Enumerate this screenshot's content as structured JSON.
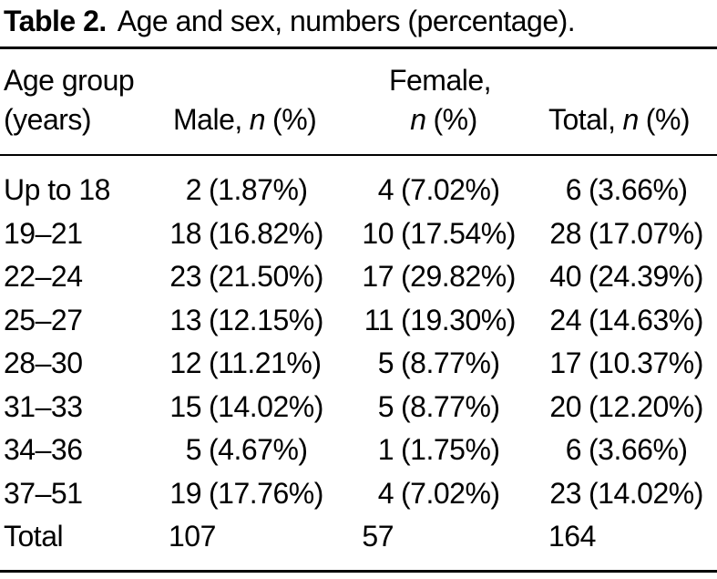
{
  "colors": {
    "text": "#000000",
    "background": "#ffffff",
    "rule": "#000000"
  },
  "caption": {
    "label": "Table 2.",
    "text": "Age and sex, numbers (percentage)."
  },
  "table": {
    "header": {
      "age_line1": "Age group",
      "age_line2": "(years)",
      "male": {
        "prefix": "Male,",
        "n": "n",
        "suffix": "(%)"
      },
      "female_line1": "Female,",
      "female": {
        "n": "n",
        "suffix": "(%)"
      },
      "total": {
        "prefix": "Total,",
        "n": "n",
        "suffix": "(%)"
      }
    },
    "rows": [
      {
        "age": "Up to 18",
        "male_n": "2",
        "male_pct": "(1.87%)",
        "female_n": "4",
        "female_pct": "(7.02%)",
        "total_n": "6",
        "total_pct": "(3.66%)"
      },
      {
        "age": "19–21",
        "male_n": "18",
        "male_pct": "(16.82%)",
        "female_n": "10",
        "female_pct": "(17.54%)",
        "total_n": "28",
        "total_pct": "(17.07%)"
      },
      {
        "age": "22–24",
        "male_n": "23",
        "male_pct": "(21.50%)",
        "female_n": "17",
        "female_pct": "(29.82%)",
        "total_n": "40",
        "total_pct": "(24.39%)"
      },
      {
        "age": "25–27",
        "male_n": "13",
        "male_pct": "(12.15%)",
        "female_n": "11",
        "female_pct": "(19.30%)",
        "total_n": "24",
        "total_pct": "(14.63%)"
      },
      {
        "age": "28–30",
        "male_n": "12",
        "male_pct": "(11.21%)",
        "female_n": "5",
        "female_pct": "(8.77%)",
        "total_n": "17",
        "total_pct": "(10.37%)"
      },
      {
        "age": "31–33",
        "male_n": "15",
        "male_pct": "(14.02%)",
        "female_n": "5",
        "female_pct": "(8.77%)",
        "total_n": "20",
        "total_pct": "(12.20%)"
      },
      {
        "age": "34–36",
        "male_n": "5",
        "male_pct": "(4.67%)",
        "female_n": "1",
        "female_pct": "(1.75%)",
        "total_n": "6",
        "total_pct": "(3.66%)"
      },
      {
        "age": "37–51",
        "male_n": "19",
        "male_pct": "(17.76%)",
        "female_n": "4",
        "female_pct": "(7.02%)",
        "total_n": "23",
        "total_pct": "(14.02%)"
      },
      {
        "age": "Total",
        "male_n": "107",
        "male_pct": "",
        "female_n": "57",
        "female_pct": "",
        "total_n": "164",
        "total_pct": ""
      }
    ]
  }
}
